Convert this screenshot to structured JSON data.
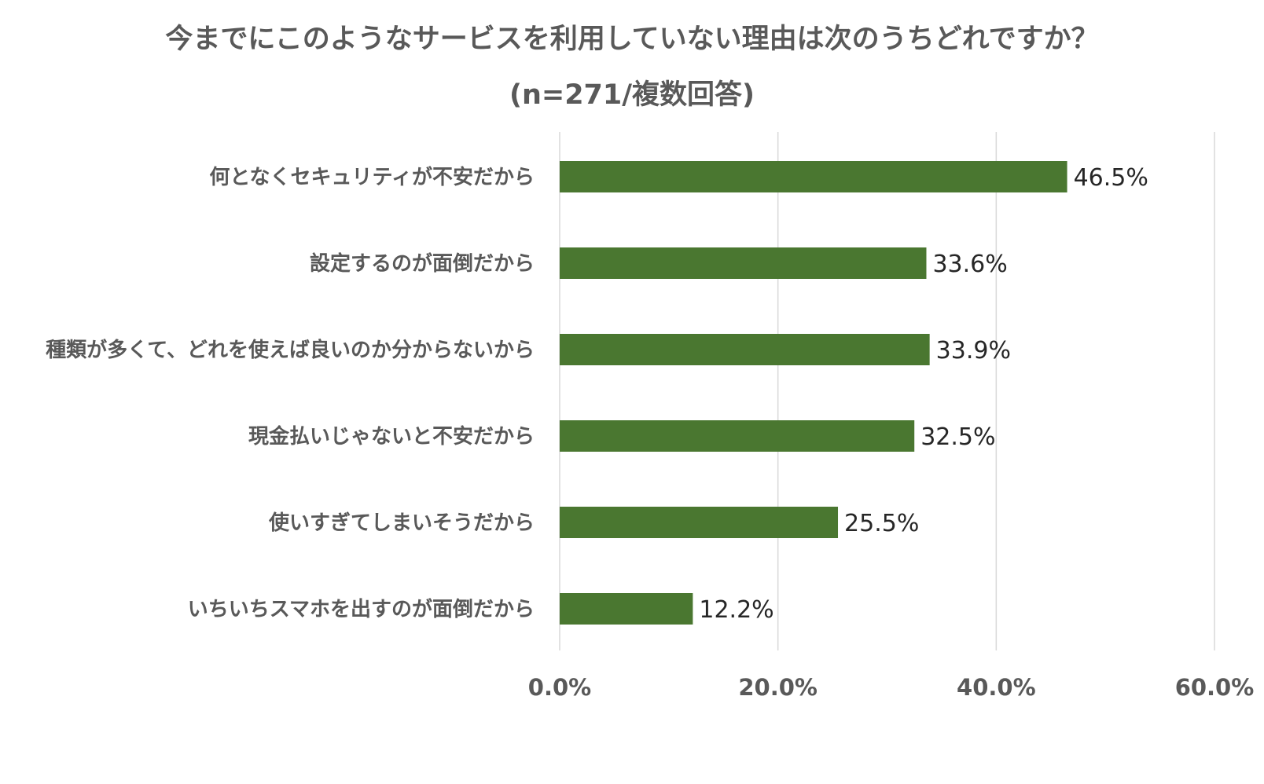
{
  "chart_data": {
    "type": "bar",
    "orientation": "horizontal",
    "title": "今までにこのようなサービスを利用していない理由は次のうちどれですか？",
    "subtitle": "(n=271/複数回答)",
    "categories": [
      "何となくセキュリティが不安だから",
      "設定するのが面倒だから",
      "種類が多くて、どれを使えば良いのか分からないから",
      "現金払いじゃないと不安だから",
      "使いすぎてしまいそうだから",
      "いちいちスマホを出すのが面倒だから"
    ],
    "values": [
      46.5,
      33.6,
      33.9,
      32.5,
      25.5,
      12.2
    ],
    "data_labels": [
      "46.5%",
      "33.6%",
      "33.9%",
      "32.5%",
      "25.5%",
      "12.2%"
    ],
    "x_ticks": [
      0,
      20,
      40,
      60
    ],
    "x_tick_labels": [
      "0.0%",
      "20.0%",
      "40.0%",
      "60.0%"
    ],
    "xlim": [
      0,
      60
    ],
    "grid": "vertical",
    "legend": "none",
    "bar_color": "#4a7730"
  }
}
